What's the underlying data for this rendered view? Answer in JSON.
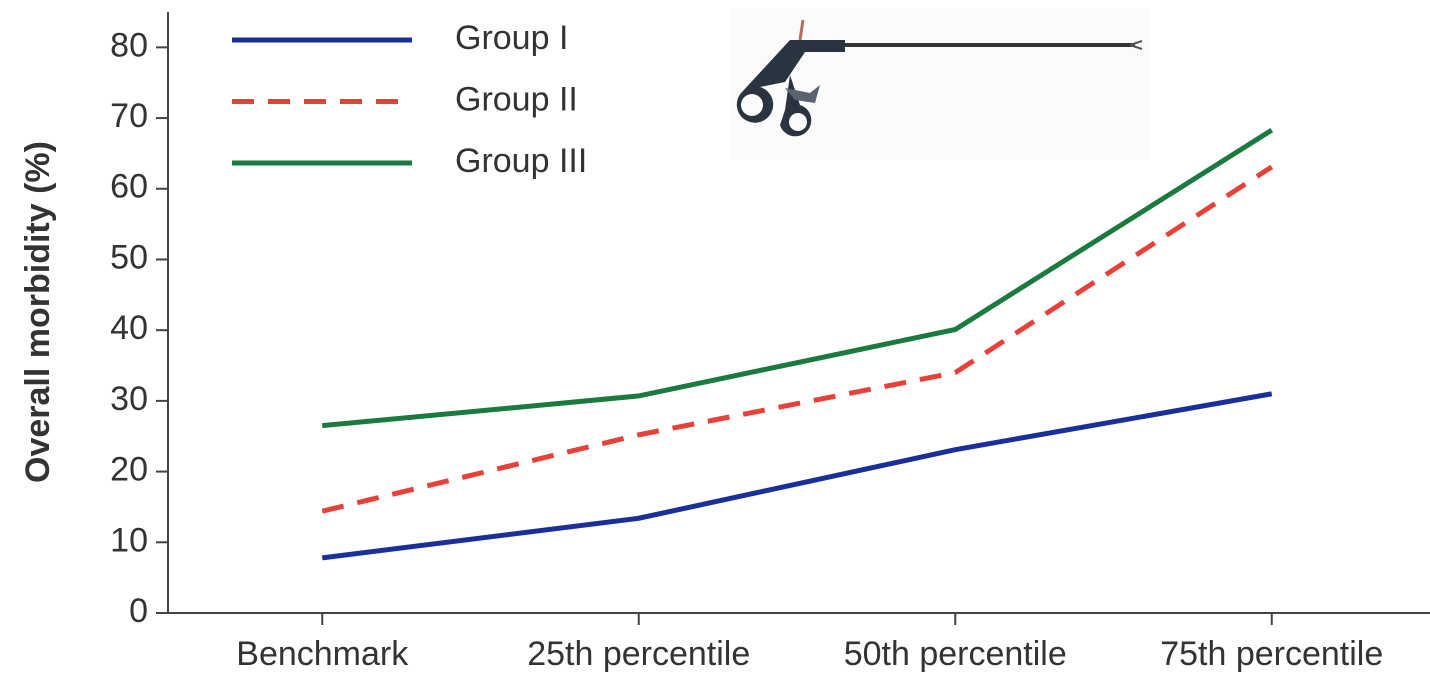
{
  "chart_data": {
    "type": "line",
    "y_label": "Overall morbidity (%)",
    "categories": [
      "Benchmark",
      "25th percentile",
      "50th percentile",
      "75th percentile"
    ],
    "series": [
      {
        "name": "Group I",
        "color": "#1b2f9b",
        "dashed": false,
        "values": [
          7.8,
          13.4,
          23.1,
          31.0
        ]
      },
      {
        "name": "Group II",
        "color": "#e8413a",
        "dashed": true,
        "values": [
          14.4,
          25.2,
          34.0,
          63.1
        ]
      },
      {
        "name": "Group III",
        "color": "#1a7a40",
        "dashed": false,
        "values": [
          26.5,
          30.7,
          40.1,
          68.3
        ]
      }
    ],
    "ylim": [
      0,
      85
    ],
    "yticks": [
      0,
      10,
      20,
      30,
      40,
      50,
      60,
      70,
      80
    ],
    "grid": false
  }
}
